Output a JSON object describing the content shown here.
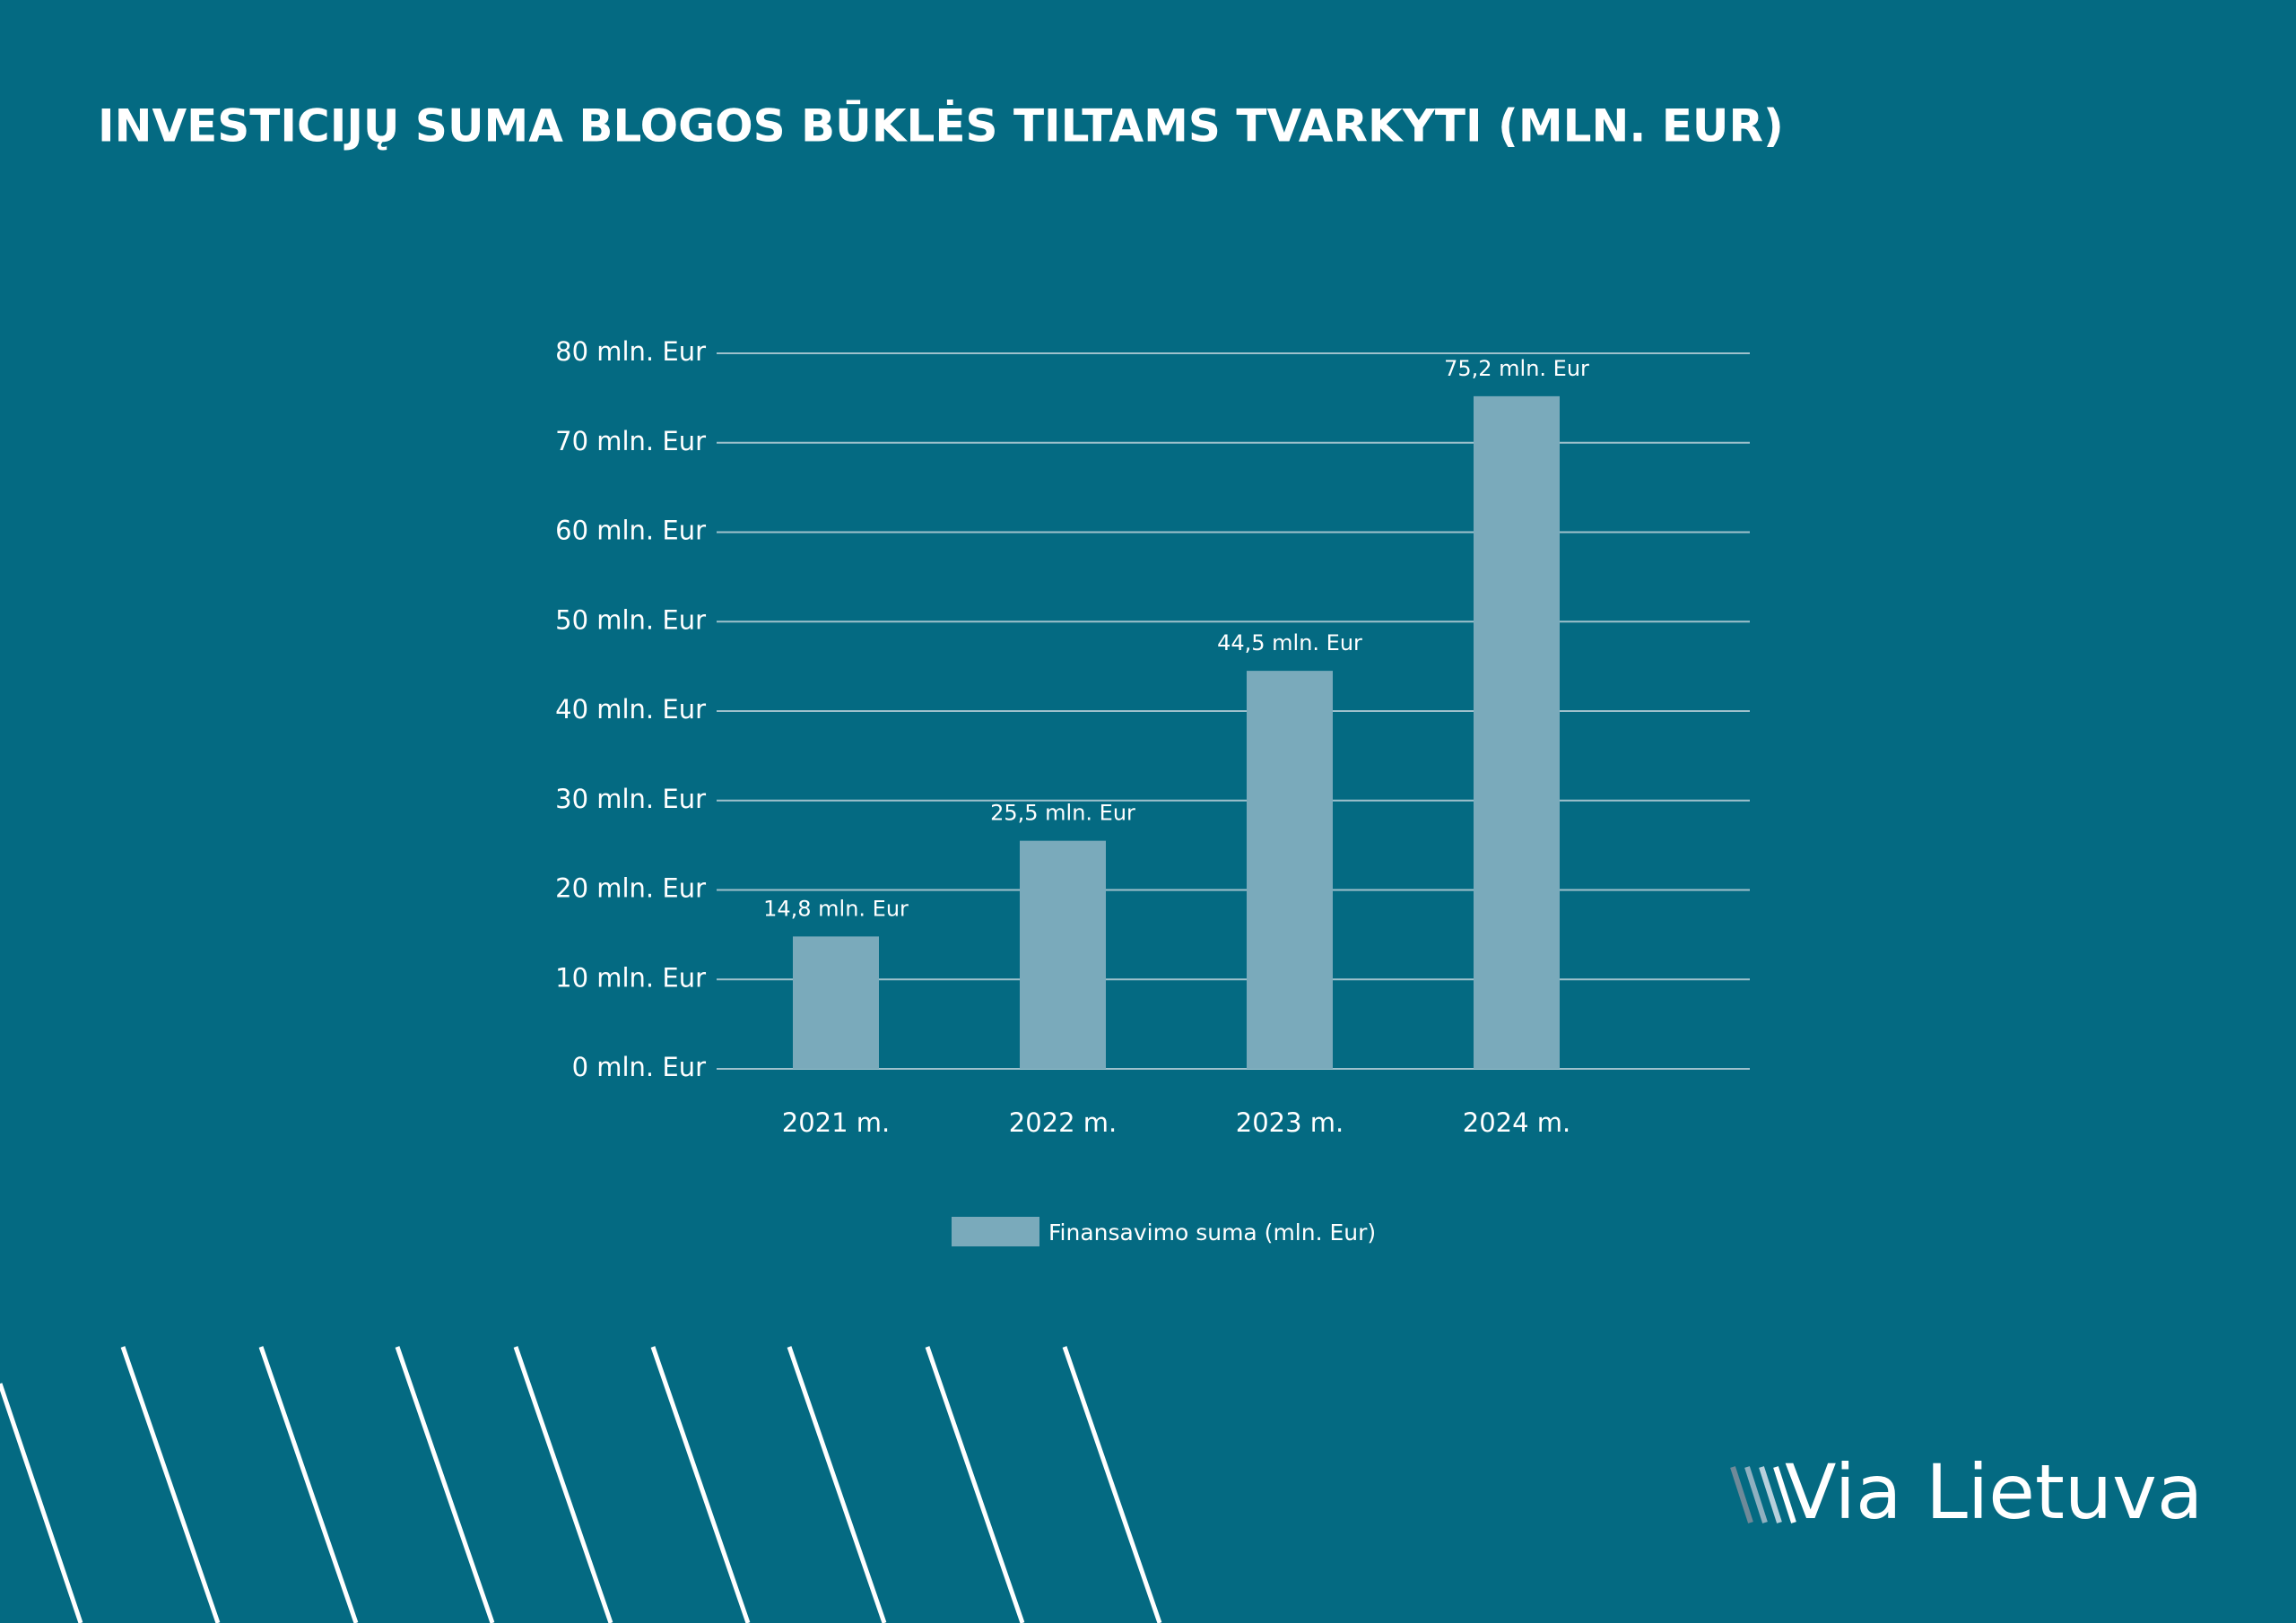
{
  "chart_data": {
    "type": "bar",
    "title": "INVESTICIJŲ SUMA BLOGOS BŪKLĖS TILTAMS TVARKYTI (MLN. EUR)",
    "categories": [
      "2021 m.",
      "2022 m.",
      "2023 m.",
      "2024 m."
    ],
    "series": [
      {
        "name": "Finansavimo suma (mln. Eur)",
        "color": "#7aaabb",
        "values": [
          14.8,
          25.5,
          44.5,
          75.2
        ],
        "value_labels": [
          "14,8 mln. Eur",
          "25,5 mln. Eur",
          "44,5 mln. Eur",
          "75,2 mln. Eur"
        ]
      }
    ],
    "ylim": [
      0,
      80
    ],
    "yticks": [
      {
        "value": 0,
        "label": "0 mln. Eur"
      },
      {
        "value": 10,
        "label": "10 mln. Eur"
      },
      {
        "value": 20,
        "label": "20 mln. Eur"
      },
      {
        "value": 30,
        "label": "30 mln. Eur"
      },
      {
        "value": 40,
        "label": "40 mln. Eur"
      },
      {
        "value": 50,
        "label": "50 mln. Eur"
      },
      {
        "value": 60,
        "label": "60 mln. Eur"
      },
      {
        "value": 70,
        "label": "70 mln. Eur"
      },
      {
        "value": 80,
        "label": "80 mln. Eur"
      }
    ],
    "grid": true,
    "legend": "bottom"
  },
  "logo": "Via Lietuva"
}
